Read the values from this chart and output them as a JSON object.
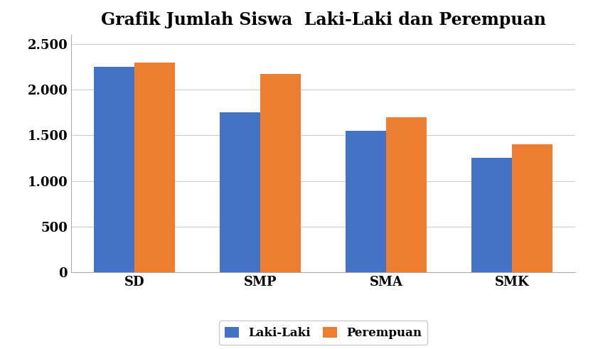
{
  "title": "Grafik Jumlah Siswa  Laki-Laki dan Perempuan",
  "categories": [
    "SD",
    "SMP",
    "SMA",
    "SMK"
  ],
  "laki_laki": [
    2250,
    1750,
    1550,
    1250
  ],
  "perempuan": [
    2300,
    2175,
    1700,
    1400
  ],
  "laki_laki_color": "#4472C4",
  "perempuan_color": "#ED7D31",
  "ylim": [
    0,
    2600
  ],
  "yticks": [
    0,
    500,
    1000,
    1500,
    2000,
    2500
  ],
  "ytick_labels": [
    "0",
    "500",
    "1.000",
    "1.500",
    "2.000",
    "2.500"
  ],
  "legend_labels": [
    "Laki-Laki",
    "Perempuan"
  ],
  "title_fontsize": 17,
  "tick_fontsize": 13,
  "legend_fontsize": 12,
  "bar_width": 0.32,
  "background_color": "#FFFFFF"
}
